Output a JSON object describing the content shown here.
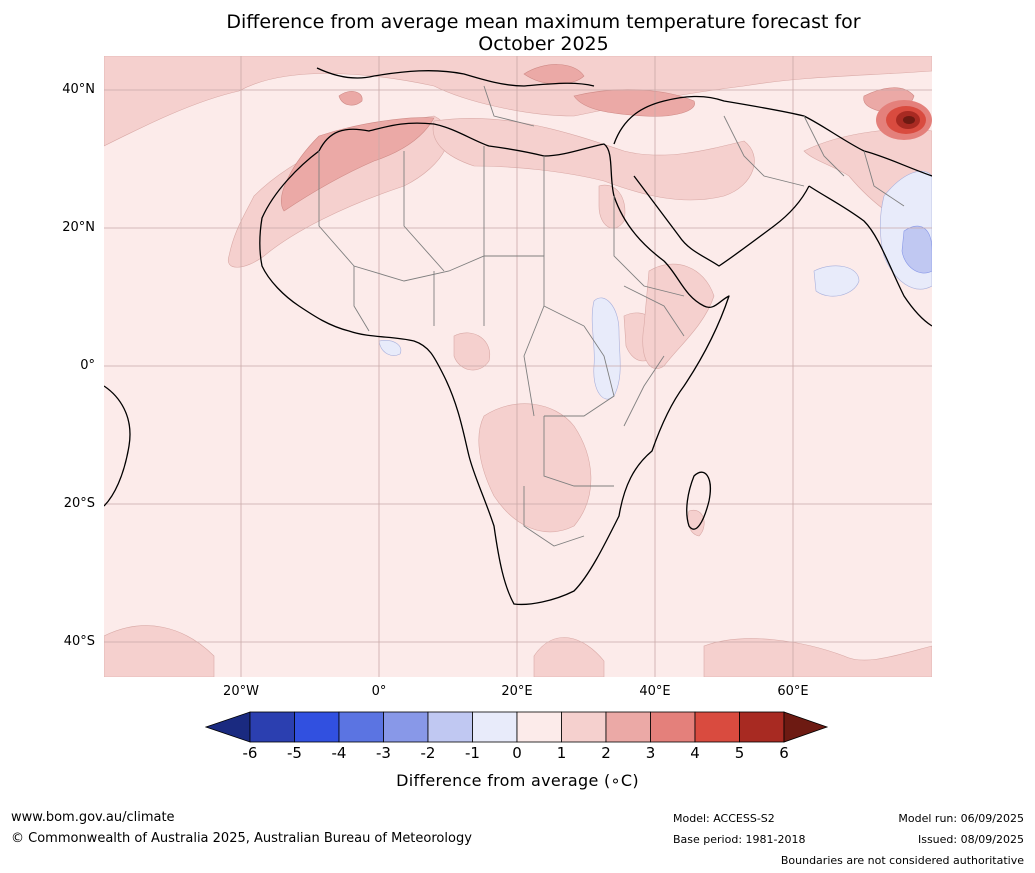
{
  "title_line1": "Difference from average mean maximum temperature forecast for",
  "title_line2": "October 2025",
  "lat_labels": [
    "40°N",
    "20°N",
    "0°",
    "20°S",
    "40°S"
  ],
  "lon_labels": [
    "20°W",
    "0°",
    "20°E",
    "40°E",
    "60°E"
  ],
  "colorbar": {
    "label": "Difference from average (∘C)",
    "ticks": [
      "-6",
      "-5",
      "-4",
      "-3",
      "-2",
      "-1",
      "0",
      "1",
      "2",
      "3",
      "4",
      "5",
      "6"
    ],
    "colors": [
      "#1a2a80",
      "#2b3fb0",
      "#3150e0",
      "#5b74e2",
      "#8898e8",
      "#c0c8f2",
      "#e8ebfa",
      "#fcebea",
      "#f5d0ce",
      "#eba9a6",
      "#e4807b",
      "#d94b3f",
      "#a82a22",
      "#6d1a12"
    ]
  },
  "footer": {
    "url": "www.bom.gov.au/climate",
    "copyright": "© Commonwealth of Australia 2025, Australian Bureau of Meteorology",
    "model": "Model: ACCESS-S2",
    "base_period": "Base period: 1981-2018",
    "model_run": "Model run: 06/09/2025",
    "issued": "Issued: 08/09/2025",
    "disclaimer": "Boundaries are not considered authoritative"
  }
}
